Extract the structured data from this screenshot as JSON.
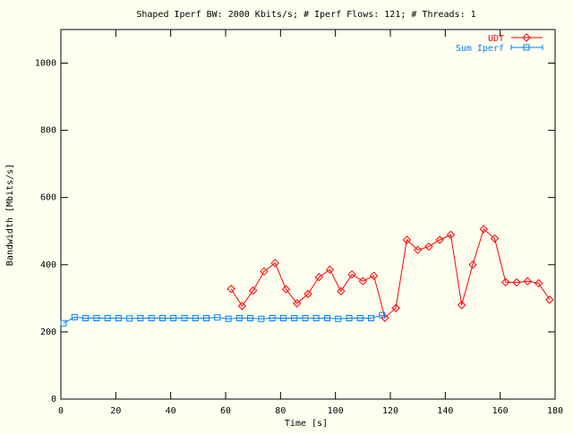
{
  "chart_data": {
    "type": "line",
    "title": "Shaped Iperf BW: 2000 Kbits/s; # Iperf Flows: 121; # Threads: 1",
    "xlabel": "Time [s]",
    "ylabel": "Bandwidth [Mbits/s]",
    "xlim": [
      0,
      180
    ],
    "ylim": [
      0,
      1100
    ],
    "xticks": [
      0,
      20,
      40,
      60,
      80,
      100,
      120,
      140,
      160,
      180
    ],
    "yticks": [
      0,
      200,
      400,
      600,
      800,
      1000
    ],
    "grid": false,
    "legend_position": "top-right",
    "series": [
      {
        "name": "UDT",
        "color": "#ff0000",
        "marker": "diamond",
        "x": [
          62,
          66,
          70,
          74,
          78,
          82,
          86,
          90,
          94,
          98,
          102,
          106,
          110,
          114,
          118,
          122,
          126,
          130,
          134,
          138,
          142,
          146,
          150,
          154,
          158,
          162,
          166,
          170,
          174,
          178
        ],
        "values": [
          328,
          277,
          323,
          380,
          405,
          327,
          285,
          313,
          363,
          385,
          321,
          371,
          351,
          367,
          242,
          271,
          474,
          444,
          454,
          474,
          489,
          280,
          400,
          506,
          478,
          348,
          347,
          351,
          345,
          296
        ]
      },
      {
        "name": "Sum Iperf",
        "color": "#0080ff",
        "marker": "square",
        "x": [
          1,
          5,
          9,
          13,
          17,
          21,
          25,
          29,
          33,
          37,
          41,
          45,
          49,
          53,
          57,
          61,
          65,
          69,
          73,
          77,
          81,
          85,
          89,
          93,
          97,
          101,
          105,
          109,
          113,
          117
        ],
        "values": [
          226,
          244,
          241,
          241,
          241,
          241,
          240,
          241,
          241,
          241,
          241,
          241,
          241,
          241,
          243,
          239,
          241,
          241,
          239,
          241,
          241,
          241,
          241,
          241,
          241,
          239,
          241,
          241,
          241,
          250
        ]
      }
    ]
  }
}
